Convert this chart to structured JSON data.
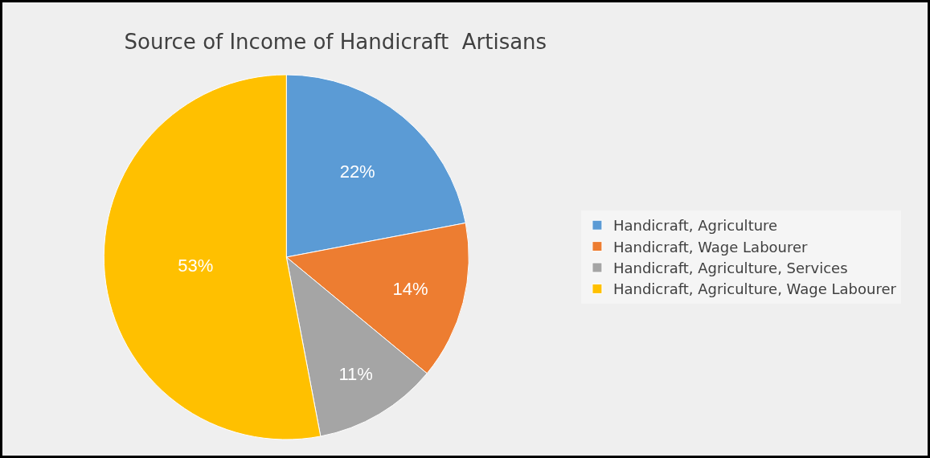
{
  "chart_data": {
    "type": "pie",
    "title": "Source of Income of Handicraft  Artisans",
    "categories": [
      "Handicraft, Agriculture",
      "Handicraft, Wage Labourer",
      "Handicraft, Agriculture, Services",
      "Handicraft, Agriculture, Wage Labourer"
    ],
    "values": [
      22,
      14,
      11,
      53
    ],
    "value_labels": [
      "22%",
      "14%",
      "11%",
      "53%"
    ],
    "colors": [
      "#5b9bd5",
      "#ed7d31",
      "#a5a5a5",
      "#ffc000"
    ],
    "legend": "right"
  }
}
